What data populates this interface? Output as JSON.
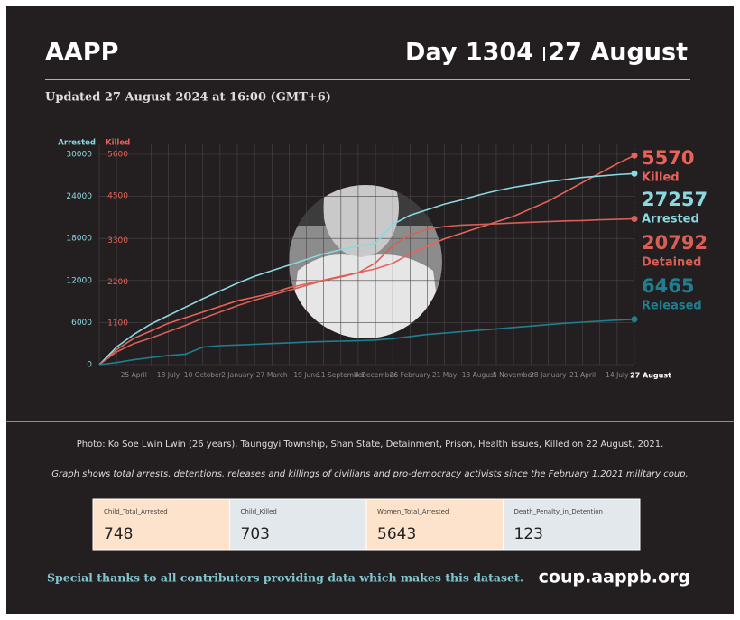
{
  "header": {
    "title": "AAPP",
    "day": "Day 1304",
    "date": "27 August",
    "updated": "Updated 27 August 2024 at 16:00 (GMT+6)"
  },
  "chart_data": {
    "type": "line",
    "y_label": "Arrested",
    "y2_label": "Killed",
    "categories": [
      null,
      null,
      "25 April",
      null,
      "18 July",
      null,
      "10 October",
      null,
      "2 January",
      null,
      "27 March",
      null,
      "19 June",
      null,
      "11 September",
      null,
      "4 December",
      null,
      "26 February",
      null,
      "21 May",
      null,
      "13 August",
      null,
      "5 November",
      null,
      "28 January",
      null,
      "21 April",
      null,
      "14 July",
      "27 August"
    ],
    "ylim": [
      0,
      30000
    ],
    "yticks": [
      0,
      6000,
      12000,
      18000,
      24000,
      30000
    ],
    "y2lim": [
      0,
      5600
    ],
    "y2ticks": [
      1100,
      2200,
      3300,
      4500,
      5600
    ],
    "grid": true,
    "series": [
      {
        "name": "Killed",
        "color": "#e8625a",
        "axis": "y2",
        "values": [
          0,
          400,
          700,
          900,
          1100,
          1250,
          1400,
          1550,
          1700,
          1800,
          1900,
          2050,
          2150,
          2250,
          2350,
          2450,
          2550,
          2700,
          2950,
          3150,
          3350,
          3500,
          3650,
          3800,
          3950,
          4150,
          4350,
          4600,
          4850,
          5100,
          5350,
          5570
        ]
      },
      {
        "name": "Arrested",
        "color": "#8ad8e0",
        "values": [
          0,
          2500,
          4300,
          5800,
          7000,
          8200,
          9400,
          10500,
          11600,
          12600,
          13400,
          14200,
          15000,
          15800,
          16400,
          16900,
          17300,
          20000,
          21300,
          22100,
          22900,
          23500,
          24200,
          24800,
          25300,
          25700,
          26100,
          26400,
          26700,
          26900,
          27100,
          27257
        ]
      },
      {
        "name": "Detained",
        "color": "#d65f58",
        "values": [
          0,
          1800,
          3000,
          3800,
          4700,
          5600,
          6600,
          7500,
          8400,
          9200,
          9900,
          10600,
          11300,
          12000,
          12500,
          13100,
          14500,
          17000,
          18500,
          19300,
          19700,
          19900,
          20000,
          20100,
          20200,
          20300,
          20400,
          20500,
          20550,
          20650,
          20720,
          20792
        ]
      },
      {
        "name": "Released",
        "color": "#1f7f90",
        "values": [
          0,
          300,
          700,
          1000,
          1300,
          1500,
          2500,
          2700,
          2800,
          2900,
          3000,
          3100,
          3200,
          3300,
          3350,
          3400,
          3500,
          3700,
          4000,
          4300,
          4500,
          4700,
          4900,
          5100,
          5300,
          5500,
          5700,
          5900,
          6050,
          6200,
          6350,
          6465
        ]
      }
    ]
  },
  "caption": "Photo: Ko Soe Lwin Lwin (26 years), Taunggyi Township, Shan State, Detainment, Prison, Health issues, Killed on 22 August, 2021.",
  "note": "Graph shows total arrests, detentions, releases and killings of civilians and pro-democracy activists since the February 1,2021 military coup.",
  "cards": [
    {
      "label": "Child_Total_Arrested",
      "value": "748"
    },
    {
      "label": "Child_Killed",
      "value": "703"
    },
    {
      "label": "Women_Total_Arrested",
      "value": "5643"
    },
    {
      "label": "Death_Penalty_in_Detention",
      "value": "123"
    }
  ],
  "footer": {
    "thanks": "Special thanks to all contributors providing data which makes this dataset.",
    "url": "coup.aappb.org"
  }
}
